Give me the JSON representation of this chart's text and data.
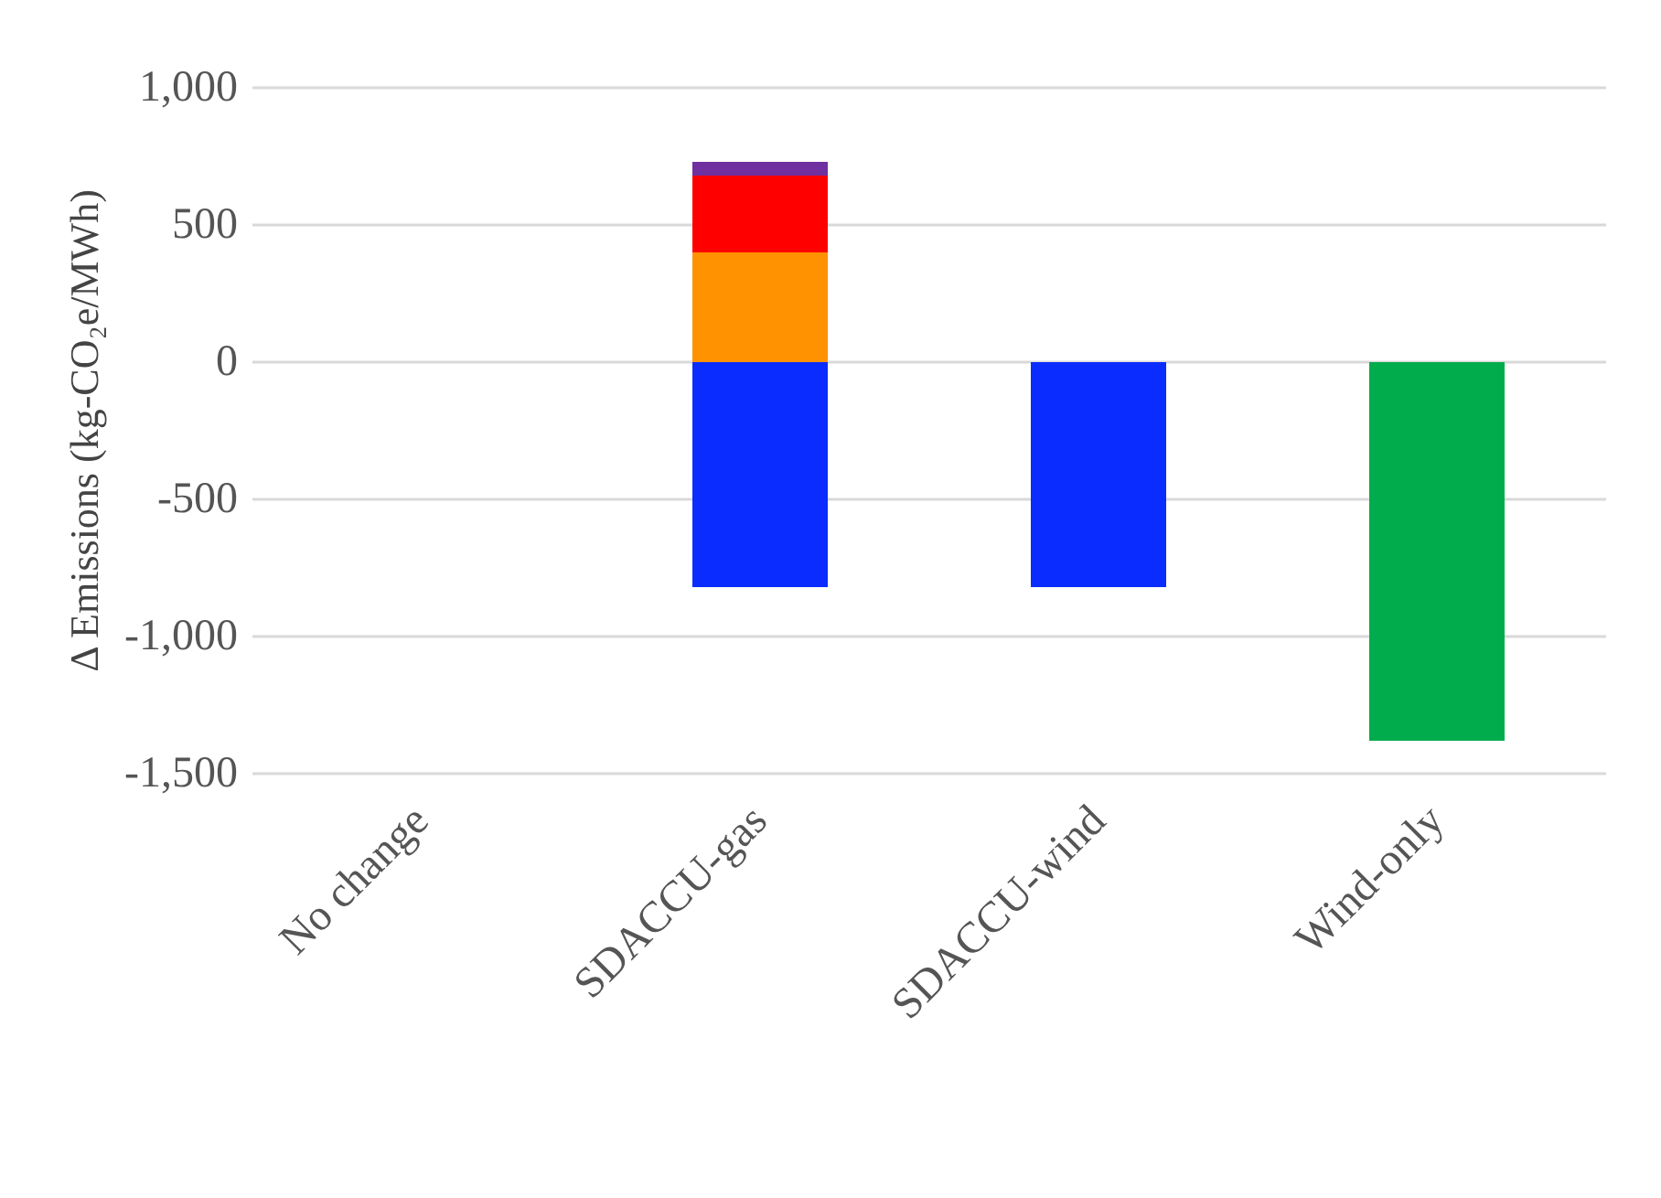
{
  "chart_data": {
    "type": "bar",
    "stacked": true,
    "ylabel": "Δ Emissions (kg-CO₂e/MWh)",
    "categories": [
      "No change",
      "SDACCU-gas",
      "SDACCU-wind",
      "Wind-only"
    ],
    "series": [
      {
        "color": "#0a2cff",
        "values": [
          null,
          -820,
          -820,
          null
        ]
      },
      {
        "color": "#ff9200",
        "values": [
          null,
          400,
          null,
          null
        ]
      },
      {
        "color": "#ff0000",
        "values": [
          null,
          280,
          null,
          null
        ]
      },
      {
        "color": "#7030a0",
        "values": [
          null,
          50,
          null,
          null
        ]
      },
      {
        "color": "#00ac4c",
        "values": [
          null,
          null,
          null,
          -1380
        ]
      }
    ],
    "ylim": [
      -1500,
      1000
    ],
    "yticks": [
      {
        "value": -1500,
        "label": "-1,500"
      },
      {
        "value": -1000,
        "label": "-1,000"
      },
      {
        "value": -500,
        "label": "-500"
      },
      0,
      {
        "value": 500,
        "label": "500"
      },
      {
        "value": 1000,
        "label": "1,000"
      }
    ],
    "grid": "y",
    "legend": false
  }
}
